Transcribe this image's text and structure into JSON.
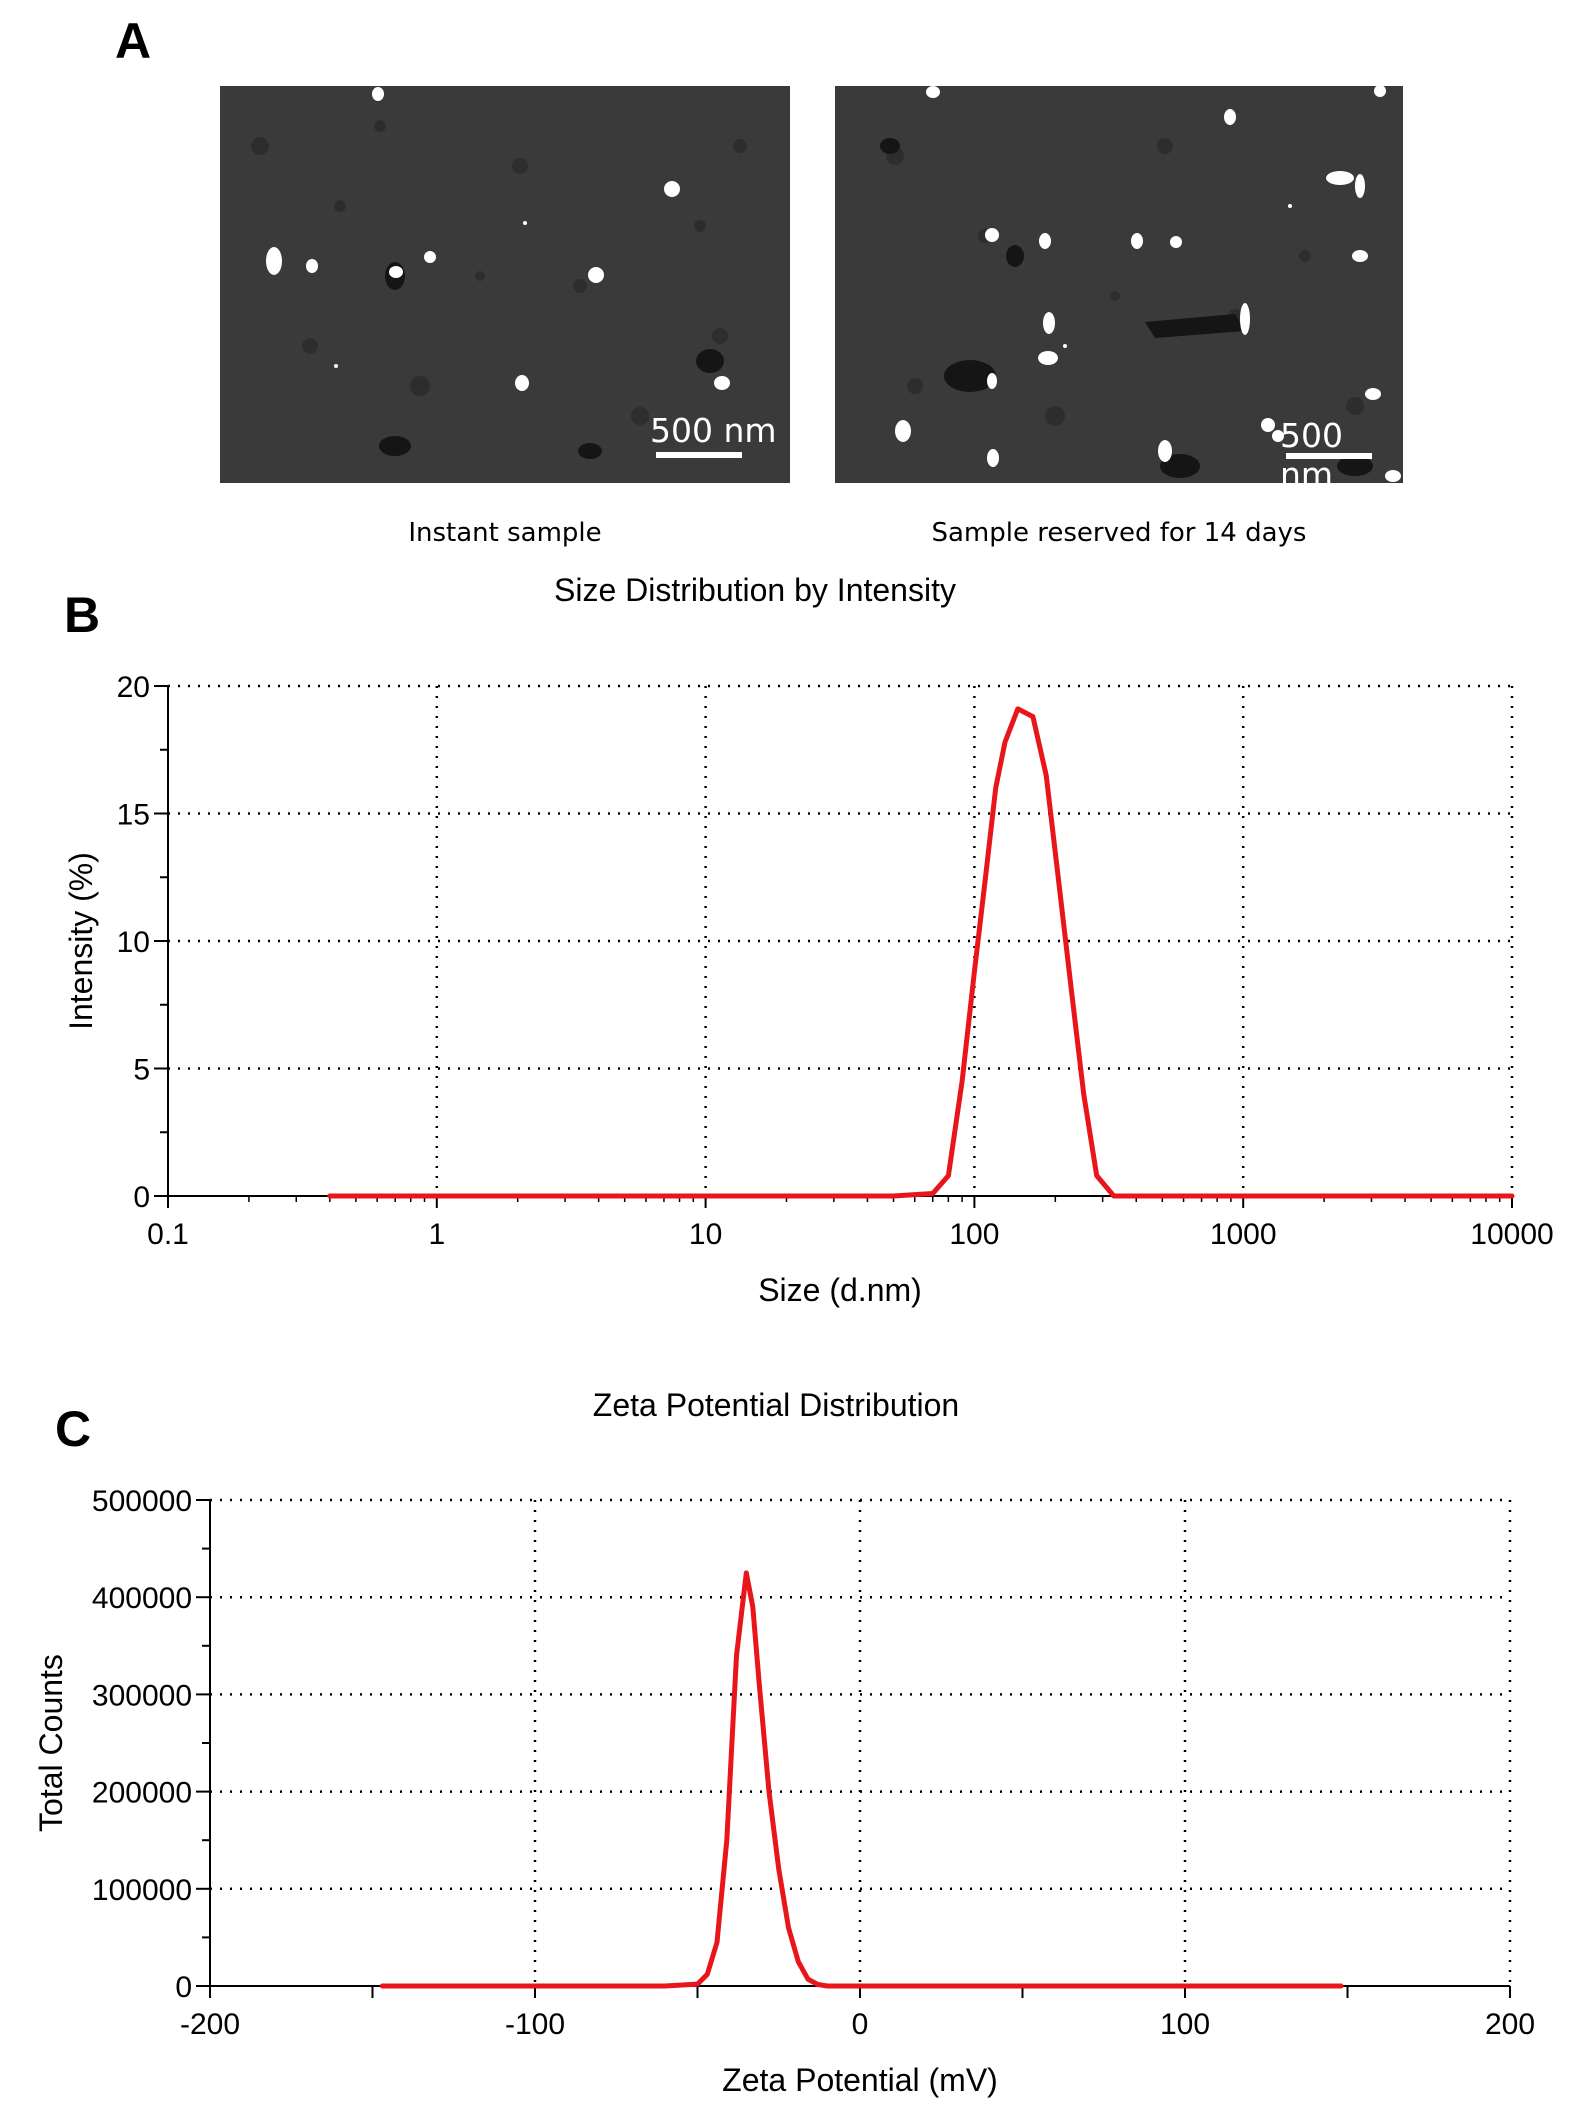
{
  "panels": {
    "a": {
      "letter": "A",
      "images": [
        {
          "caption": "Instant sample",
          "scale_bar": "500 nm"
        },
        {
          "caption": "Sample reserved for 14 days",
          "scale_bar": "500 nm"
        }
      ]
    },
    "b": {
      "letter": "B"
    },
    "c": {
      "letter": "C"
    }
  },
  "colors": {
    "line": "#e8151b",
    "grid": "#000000",
    "tem_background": "#3a3a3a",
    "particle": "#ffffff"
  },
  "chart_data": [
    {
      "type": "line",
      "title": "Size Distribution by Intensity",
      "xlabel": "Size (d.nm)",
      "ylabel": "Intensity (%)",
      "xscale": "log",
      "xlim": [
        0.1,
        10000
      ],
      "ylim": [
        0,
        20
      ],
      "xticks": [
        0.1,
        1,
        10,
        100,
        1000,
        10000
      ],
      "xtick_labels": [
        "0.1",
        "1",
        "10",
        "100",
        "1000",
        "10000"
      ],
      "yticks": [
        0,
        5,
        10,
        15,
        20
      ],
      "ytick_labels": [
        "0",
        "5",
        "10",
        "15",
        "20"
      ],
      "grid": true,
      "series": [
        {
          "color": "#e8151b",
          "x": [
            0.4,
            1,
            10,
            50,
            70,
            80,
            90,
            100,
            110,
            120,
            130,
            145,
            165,
            185,
            205,
            230,
            255,
            285,
            330,
            400,
            1000,
            10000
          ],
          "y": [
            0,
            0,
            0,
            0,
            0.1,
            0.8,
            4.5,
            8.8,
            12.5,
            16,
            17.8,
            19.1,
            18.8,
            16.5,
            12.5,
            8,
            4,
            0.8,
            0,
            0,
            0,
            0
          ]
        }
      ]
    },
    {
      "type": "line",
      "title": "Zeta Potential Distribution",
      "xlabel": "Zeta Potential (mV)",
      "ylabel": "Total Counts",
      "xlim": [
        -200,
        200
      ],
      "ylim": [
        0,
        500000
      ],
      "xticks": [
        -200,
        -100,
        0,
        100,
        200
      ],
      "xtick_labels": [
        "-200",
        "-100",
        "0",
        "100",
        "200"
      ],
      "yticks": [
        0,
        100000,
        200000,
        300000,
        400000,
        500000
      ],
      "ytick_labels": [
        "0",
        "100000",
        "200000",
        "300000",
        "400000",
        "500000"
      ],
      "grid": true,
      "series": [
        {
          "color": "#e8151b",
          "x": [
            -147,
            -60,
            -50,
            -47,
            -44,
            -41,
            -38,
            -35,
            -33,
            -31,
            -28,
            -25,
            -22,
            -19,
            -16,
            -13,
            -10,
            -5,
            0,
            50,
            148
          ],
          "y": [
            0,
            0,
            2000,
            12000,
            45000,
            150000,
            340000,
            425000,
            390000,
            310000,
            200000,
            120000,
            60000,
            25000,
            7000,
            1500,
            0,
            0,
            0,
            0,
            0
          ]
        }
      ]
    }
  ]
}
